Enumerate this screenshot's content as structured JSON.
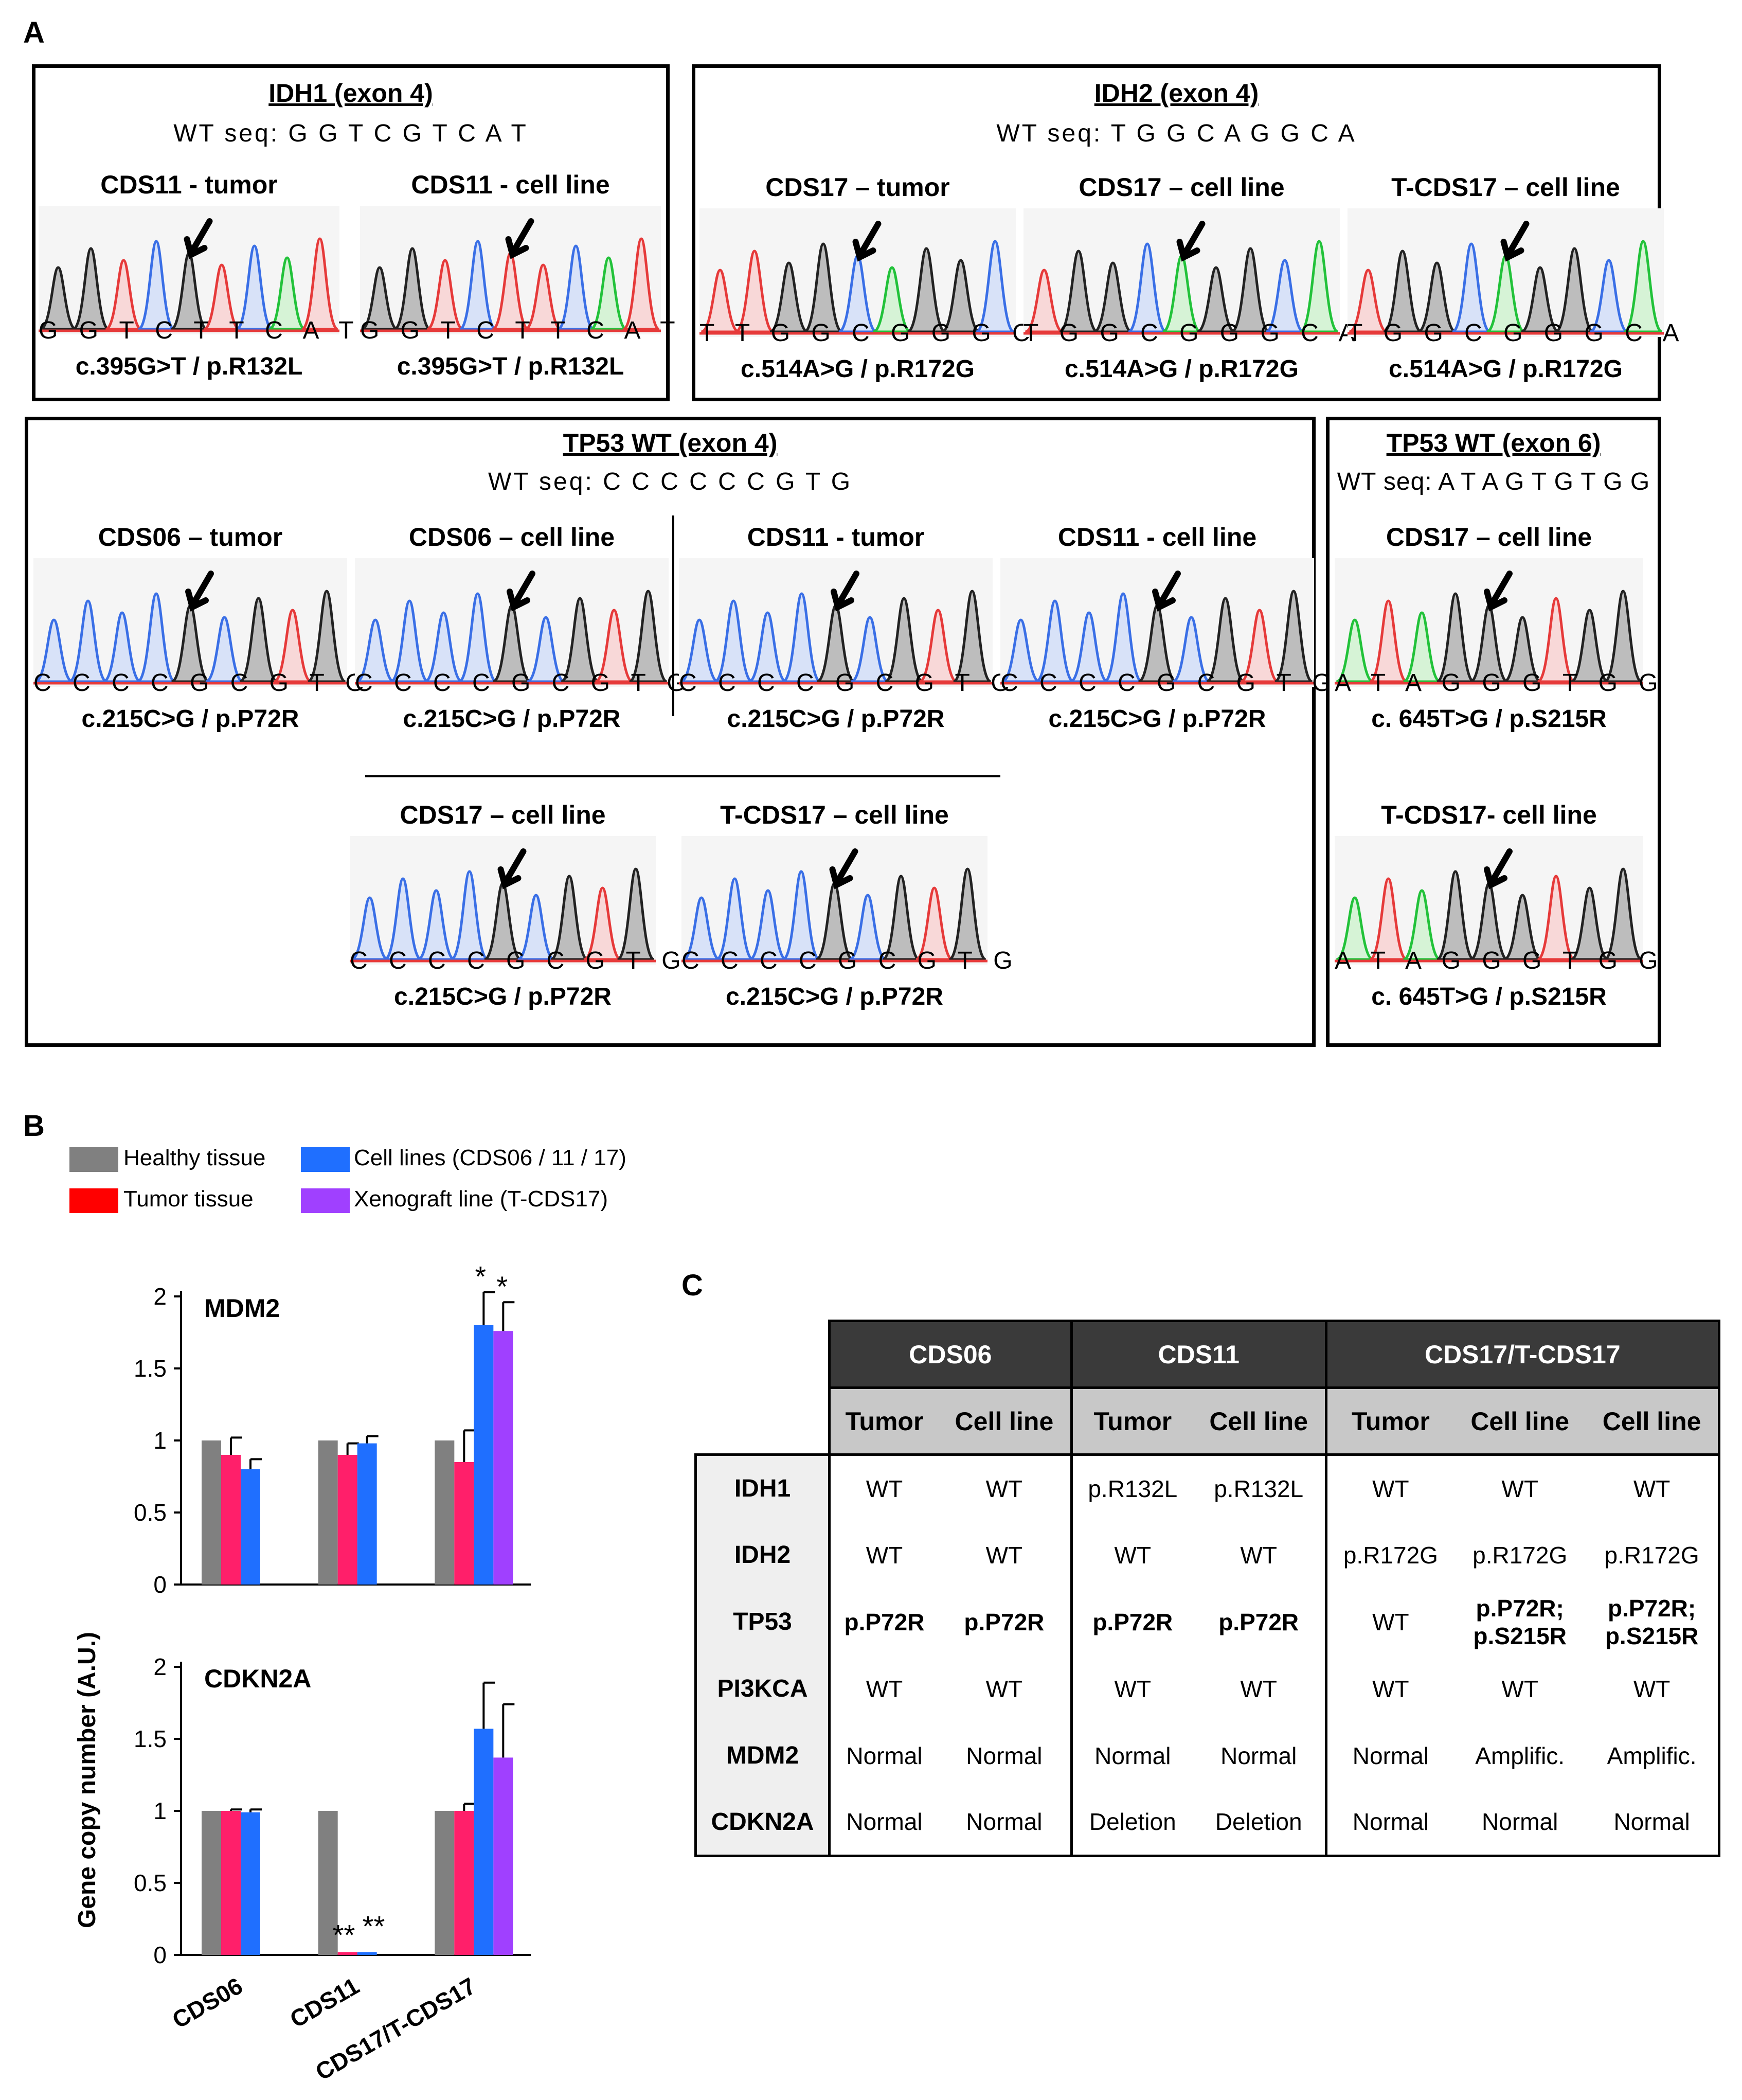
{
  "panel_letters": {
    "a": "A",
    "b": "B",
    "c": "C"
  },
  "panel_a": {
    "idh1": {
      "title": "IDH1  (exon 4)",
      "wt_seq": "WT seq: G G T C G T C A T",
      "traces": [
        {
          "label": "CDS11 - tumor",
          "seq": "G G T C T T C A T",
          "mutation": "c.395G>T  / p.R132L",
          "colors": [
            "k",
            "k",
            "r",
            "b",
            "k",
            "r",
            "b",
            "g",
            "r"
          ]
        },
        {
          "label": "CDS11 - cell line",
          "seq": "G G T C T T C A T",
          "mutation": "c.395G>T  / p.R132L",
          "colors": [
            "k",
            "k",
            "r",
            "b",
            "r",
            "r",
            "b",
            "g",
            "r"
          ]
        }
      ]
    },
    "idh2": {
      "title": "IDH2  (exon 4)",
      "wt_seq": "WT seq: T G G C A G G C A",
      "traces": [
        {
          "label": "CDS17 – tumor",
          "seq": "T T G G C G G G C",
          "mutation": "c.514A>G / p.R172G",
          "colors": [
            "r",
            "r",
            "k",
            "k",
            "b",
            "g",
            "k",
            "k",
            "b"
          ]
        },
        {
          "label": "CDS17 – cell line",
          "seq": "T G G C G G G C A",
          "mutation": "c.514A>G / p.R172G",
          "colors": [
            "r",
            "k",
            "k",
            "b",
            "g",
            "k",
            "k",
            "b",
            "g"
          ]
        },
        {
          "label": "T-CDS17 – cell line",
          "seq": "T G G C G G G C A",
          "mutation": "c.514A>G / p.R172G",
          "colors": [
            "r",
            "k",
            "k",
            "b",
            "g",
            "k",
            "k",
            "b",
            "g"
          ]
        }
      ]
    },
    "tp53_ex4": {
      "title": "TP53 WT (exon 4)",
      "wt_seq": "WT seq: C  C C C  C  C G T G",
      "traces": [
        {
          "label": "CDS06 – tumor",
          "seq": "C C C C G C G T G",
          "mutation": "c.215C>G / p.P72R",
          "colors": [
            "b",
            "b",
            "b",
            "b",
            "k",
            "b",
            "k",
            "r",
            "k"
          ]
        },
        {
          "label": "CDS06 – cell line",
          "seq": "C C C C G C G T G",
          "mutation": "c.215C>G / p.P72R",
          "colors": [
            "b",
            "b",
            "b",
            "b",
            "k",
            "b",
            "k",
            "r",
            "k"
          ]
        },
        {
          "label": "CDS11 -  tumor",
          "seq": "C C C C G C G T G",
          "mutation": "c.215C>G / p.P72R",
          "colors": [
            "b",
            "b",
            "b",
            "b",
            "k",
            "b",
            "k",
            "r",
            "k"
          ]
        },
        {
          "label": "CDS11 -  cell line",
          "seq": "C C C C G C G T G",
          "mutation": "c.215C>G / p.P72R",
          "colors": [
            "b",
            "b",
            "b",
            "b",
            "k",
            "b",
            "k",
            "r",
            "k"
          ]
        },
        {
          "label": "CDS17 – cell line",
          "seq": "C C C C G C G T G",
          "mutation": "c.215C>G / p.P72R",
          "colors": [
            "b",
            "b",
            "b",
            "b",
            "k",
            "b",
            "k",
            "r",
            "k"
          ]
        },
        {
          "label": "T-CDS17 – cell line",
          "seq": "C C C C G C G T G",
          "mutation": "c.215C>G / p.P72R",
          "colors": [
            "b",
            "b",
            "b",
            "b",
            "k",
            "b",
            "k",
            "r",
            "k"
          ]
        }
      ]
    },
    "tp53_ex6": {
      "title": "TP53 WT (exon 6)",
      "wt_seq": "WT seq: A T A G T G T G G",
      "traces": [
        {
          "label": "CDS17 – cell line",
          "seq": "A T A G G G T G G",
          "mutation": "c. 645T>G / p.S215R",
          "colors": [
            "g",
            "r",
            "g",
            "k",
            "k",
            "k",
            "r",
            "k",
            "k"
          ]
        },
        {
          "label": "T-CDS17- cell line",
          "seq": "A T A G G G T G G",
          "mutation": "c. 645T>G / p.S215R",
          "colors": [
            "g",
            "r",
            "g",
            "k",
            "k",
            "k",
            "r",
            "k",
            "k"
          ]
        }
      ]
    }
  },
  "panel_b": {
    "legend": [
      {
        "label": "Healthy tissue",
        "color": "#808080"
      },
      {
        "label": "Tumor tissue",
        "color": "#ff0000"
      },
      {
        "label": "Cell lines (CDS06 / 11 / 17)",
        "color": "#1f6fff"
      },
      {
        "label": "Xenograft line (T-CDS17)",
        "color": "#a040ff"
      }
    ],
    "ylabel": "Gene copy number (A.U.)",
    "colors": {
      "healthy": "#808080",
      "tumor": "#ff1f6a",
      "cell": "#1f6fff",
      "xeno": "#a040ff"
    }
  },
  "chart_data": [
    {
      "type": "bar",
      "title": "MDM2",
      "categories": [
        "CDS06",
        "CDS11",
        "CDS17/T-CDS17"
      ],
      "ylabel": "Gene copy number (A.U.)",
      "ylim": [
        0,
        2
      ],
      "yticks": [
        "0",
        "0.5",
        "1",
        "1.5",
        "2"
      ],
      "series": [
        {
          "name": "Healthy tissue",
          "values": [
            1.0,
            1.0,
            1.0
          ],
          "errors": [
            0,
            0,
            0
          ]
        },
        {
          "name": "Tumor tissue",
          "values": [
            0.9,
            0.9,
            0.85
          ],
          "errors": [
            0.12,
            0.08,
            0.22
          ]
        },
        {
          "name": "Cell lines (CDS06 / 11 / 17)",
          "values": [
            0.8,
            0.98,
            1.8
          ],
          "errors": [
            0.07,
            0.05,
            0.23
          ]
        },
        {
          "name": "Xenograft line (T-CDS17)",
          "values": [
            null,
            null,
            1.76
          ],
          "errors": [
            0,
            0,
            0.2
          ]
        }
      ],
      "annotations": [
        "*",
        "*"
      ]
    },
    {
      "type": "bar",
      "title": "CDKN2A",
      "categories": [
        "CDS06",
        "CDS11",
        "CDS17/T-CDS17"
      ],
      "ylabel": "Gene copy number (A.U.)",
      "ylim": [
        0,
        2
      ],
      "yticks": [
        "0",
        "0.5",
        "1",
        "1.5",
        "2"
      ],
      "series": [
        {
          "name": "Healthy tissue",
          "values": [
            1.0,
            1.0,
            1.0
          ],
          "errors": [
            0,
            0,
            0
          ]
        },
        {
          "name": "Tumor tissue",
          "values": [
            1.0,
            0.02,
            1.0
          ],
          "errors": [
            0.01,
            0,
            0.05
          ]
        },
        {
          "name": "Cell lines (CDS06 / 11 / 17)",
          "values": [
            0.99,
            0.02,
            1.57
          ],
          "errors": [
            0.02,
            0,
            0.32
          ]
        },
        {
          "name": "Xenograft line (T-CDS17)",
          "values": [
            null,
            null,
            1.37
          ],
          "errors": [
            0,
            0,
            0.37
          ]
        }
      ],
      "annotations": [
        "**",
        "**"
      ]
    }
  ],
  "panel_c": {
    "groups": [
      "CDS06",
      "CDS11",
      "CDS17/T-CDS17"
    ],
    "subheaders": [
      "Tumor",
      "Cell line",
      "Tumor",
      "Cell line",
      "Tumor",
      "Cell line",
      "Cell line"
    ],
    "rows": [
      {
        "gene": "IDH1",
        "cells": [
          "WT",
          "WT",
          "p.R132L",
          "p.R132L",
          "WT",
          "WT",
          "WT"
        ]
      },
      {
        "gene": "IDH2",
        "cells": [
          "WT",
          "WT",
          "WT",
          "WT",
          "p.R172G",
          "p.R172G",
          "p.R172G"
        ]
      },
      {
        "gene": "TP53",
        "cells": [
          "p.P72R",
          "p.P72R",
          "p.P72R",
          "p.P72R",
          "WT",
          "p.P72R;\np.S215R",
          "p.P72R;\np.S215R"
        ]
      },
      {
        "gene": "PI3KCA",
        "cells": [
          "WT",
          "WT",
          "WT",
          "WT",
          "WT",
          "WT",
          "WT"
        ]
      },
      {
        "gene": "MDM2",
        "cells": [
          "Normal",
          "Normal",
          "Normal",
          "Normal",
          "Normal",
          "Amplific.",
          "Amplific."
        ]
      },
      {
        "gene": "CDKN2A",
        "cells": [
          "Normal",
          "Normal",
          "Deletion",
          "Deletion",
          "Normal",
          "Normal",
          "Normal"
        ]
      }
    ]
  }
}
